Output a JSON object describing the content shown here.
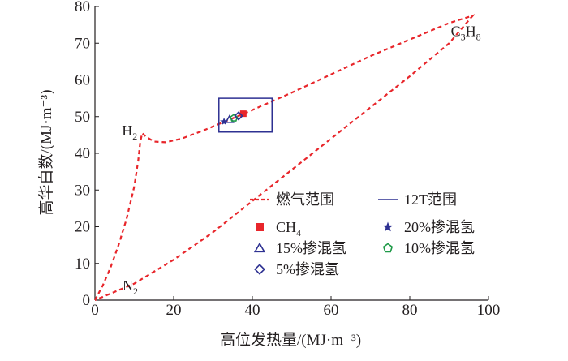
{
  "chart_data": {
    "type": "scatter",
    "xlabel": "高位发热量/(MJ·m⁻³)",
    "ylabel": "高华白数/(MJ·m⁻³)",
    "xlim": [
      0,
      100
    ],
    "ylim": [
      0,
      80
    ],
    "x_ticks": [
      0,
      20,
      40,
      60,
      80,
      100
    ],
    "y_ticks": [
      0,
      10,
      20,
      30,
      40,
      50,
      60,
      70,
      80
    ],
    "grid": false,
    "legend_placement": "lower-right",
    "gas_range_curve": {
      "name": "燃气范围",
      "color": "#e8262b",
      "style": "dashed",
      "points": [
        [
          0,
          0
        ],
        [
          2,
          4
        ],
        [
          4,
          9
        ],
        [
          6,
          15
        ],
        [
          8,
          22
        ],
        [
          10,
          31
        ],
        [
          11,
          38
        ],
        [
          11.5,
          43
        ],
        [
          12,
          45.5
        ],
        [
          13,
          44.5
        ],
        [
          15,
          43.2
        ],
        [
          18,
          43
        ],
        [
          22,
          44
        ],
        [
          27,
          46
        ],
        [
          32,
          48.2
        ],
        [
          36,
          50
        ],
        [
          40,
          51.8
        ],
        [
          50,
          56.5
        ],
        [
          60,
          61.5
        ],
        [
          70,
          66.5
        ],
        [
          80,
          71
        ],
        [
          90,
          75.5
        ],
        [
          96,
          77.5
        ],
        [
          90,
          70
        ],
        [
          80,
          61
        ],
        [
          70,
          52.5
        ],
        [
          60,
          44
        ],
        [
          50,
          35.5
        ],
        [
          40,
          27
        ],
        [
          30,
          18.5
        ],
        [
          20,
          11
        ],
        [
          10,
          4.5
        ],
        [
          0,
          0
        ]
      ]
    },
    "range_12T": {
      "name": "12T范围",
      "color": "#2e3192",
      "x": [
        31.5,
        45
      ],
      "y": [
        45.8,
        55
      ]
    },
    "points": [
      {
        "name": "CH₄",
        "marker": "square",
        "color": "#e8262b",
        "x": 37.7,
        "y": 50.8
      },
      {
        "name": "20%掺混氢",
        "marker": "star",
        "color": "#2e3192",
        "x": 32.8,
        "y": 48.6
      },
      {
        "name": "15%掺混氢",
        "marker": "triangle",
        "color": "#2e3192",
        "x": 34.2,
        "y": 49.2
      },
      {
        "name": "10%掺混氢",
        "marker": "pentagon",
        "color": "#1f9a48",
        "x": 35.3,
        "y": 49.6
      },
      {
        "name": "5%掺混氢",
        "marker": "diamond",
        "color": "#2e3192",
        "x": 36.5,
        "y": 50.2
      }
    ],
    "annotations": [
      {
        "text": "H₂",
        "x": 12,
        "y": 45.5
      },
      {
        "text": "N₂",
        "x": 0,
        "y": 0
      },
      {
        "text": "C₃H₈",
        "x": 96,
        "y": 77.5
      }
    ],
    "legend": [
      {
        "label": "燃气范围",
        "kind": "dashed-line",
        "color": "#e8262b"
      },
      {
        "label": "12T范围",
        "kind": "solid-line",
        "color": "#2e3192"
      },
      {
        "label": "CH₄",
        "kind": "square",
        "color": "#e8262b"
      },
      {
        "label": "20%掺混氢",
        "kind": "star",
        "color": "#2e3192"
      },
      {
        "label": "15%掺混氢",
        "kind": "triangle",
        "color": "#2e3192"
      },
      {
        "label": "10%掺混氢",
        "kind": "pentagon",
        "color": "#1f9a48"
      },
      {
        "label": "5%掺混氢",
        "kind": "diamond",
        "color": "#2e3192"
      }
    ]
  }
}
